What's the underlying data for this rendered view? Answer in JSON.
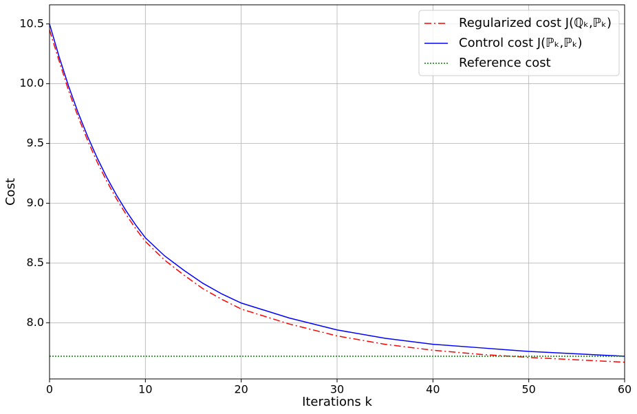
{
  "chart_data": {
    "type": "line",
    "xlabel": "Iterations k",
    "ylabel": "Cost",
    "x": [
      0,
      1,
      2,
      3,
      4,
      5,
      6,
      7,
      8,
      9,
      10,
      12,
      14,
      16,
      18,
      20,
      25,
      30,
      35,
      40,
      45,
      50,
      55,
      60
    ],
    "series": [
      {
        "name": "Regularized cost J(ℚₖ,ℙₖ)",
        "color": "#ff0000",
        "style": "dashdot",
        "values": [
          10.45,
          10.19,
          9.94,
          9.72,
          9.52,
          9.34,
          9.18,
          9.035,
          8.905,
          8.785,
          8.68,
          8.525,
          8.4,
          8.285,
          8.195,
          8.115,
          7.99,
          7.89,
          7.82,
          7.77,
          7.735,
          7.71,
          7.69,
          7.67
        ]
      },
      {
        "name": "Control cost J(ℙₖ,ℙₖ)",
        "color": "#0000ff",
        "style": "solid",
        "values": [
          10.5,
          10.225,
          9.977,
          9.754,
          9.554,
          9.374,
          9.212,
          9.066,
          8.935,
          8.817,
          8.711,
          8.56,
          8.44,
          8.33,
          8.24,
          8.165,
          8.04,
          7.94,
          7.87,
          7.82,
          7.79,
          7.76,
          7.74,
          7.72
        ]
      },
      {
        "name": "Reference cost",
        "color": "#008000",
        "style": "dotted",
        "values": [
          7.72,
          7.72,
          7.72,
          7.72,
          7.72,
          7.72,
          7.72,
          7.72,
          7.72,
          7.72,
          7.72,
          7.72,
          7.72,
          7.72,
          7.72,
          7.72,
          7.72,
          7.72,
          7.72,
          7.72,
          7.72,
          7.72,
          7.72,
          7.72
        ]
      }
    ],
    "xlim": [
      0,
      60
    ],
    "xticks": [
      0,
      10,
      20,
      30,
      40,
      50,
      60
    ],
    "ylim": [
      7.53,
      10.66
    ],
    "yticks": [
      {
        "value": 8,
        "label": "8.0"
      },
      8.5,
      {
        "value": 9,
        "label": "9.0"
      },
      9.5,
      {
        "value": 10,
        "label": "10.0"
      },
      10.5
    ],
    "grid": true,
    "legend": "upper right"
  }
}
